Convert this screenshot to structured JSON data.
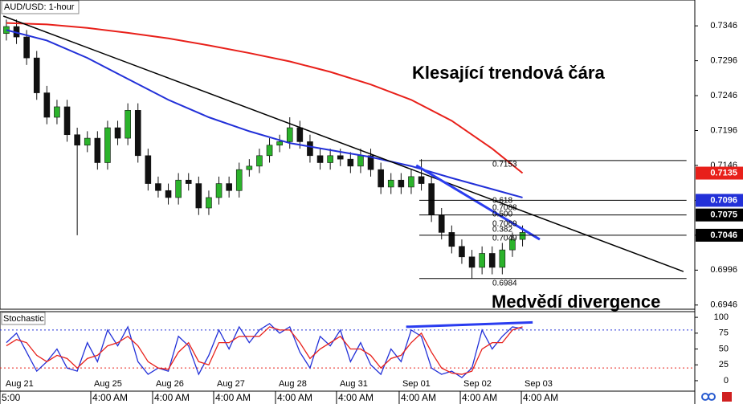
{
  "chart_data": [
    {
      "type": "candlestick",
      "title": "AUD/USD: 1-hour",
      "x": [
        0,
        1,
        2,
        3,
        4,
        5,
        6,
        7,
        8,
        9,
        10,
        11,
        12,
        13,
        14,
        15,
        16,
        17,
        18,
        19,
        20,
        21,
        22,
        23,
        24,
        25,
        26,
        27,
        28,
        29,
        30,
        31,
        32,
        33,
        34,
        35,
        36,
        37,
        38,
        39,
        40,
        41,
        42,
        43,
        44,
        45,
        46,
        47,
        48,
        49,
        50,
        51
      ],
      "open": [
        0.7335,
        0.7345,
        0.733,
        0.73,
        0.725,
        0.7215,
        0.723,
        0.719,
        0.7175,
        0.7185,
        0.715,
        0.72,
        0.7185,
        0.7225,
        0.716,
        0.712,
        0.711,
        0.71,
        0.7125,
        0.712,
        0.7085,
        0.71,
        0.712,
        0.711,
        0.714,
        0.7145,
        0.716,
        0.7175,
        0.718,
        0.72,
        0.718,
        0.716,
        0.715,
        0.716,
        0.7155,
        0.7145,
        0.716,
        0.714,
        0.7115,
        0.7125,
        0.7115,
        0.713,
        0.712,
        0.7075,
        0.705,
        0.703,
        0.7015,
        0.7,
        0.702,
        0.7,
        0.7025,
        0.704
      ],
      "high": [
        0.7355,
        0.7355,
        0.734,
        0.731,
        0.726,
        0.724,
        0.724,
        0.72,
        0.7195,
        0.7195,
        0.721,
        0.721,
        0.7235,
        0.7235,
        0.717,
        0.713,
        0.712,
        0.7135,
        0.7135,
        0.713,
        0.711,
        0.713,
        0.713,
        0.715,
        0.7155,
        0.717,
        0.7185,
        0.719,
        0.7215,
        0.721,
        0.719,
        0.717,
        0.717,
        0.717,
        0.7165,
        0.717,
        0.717,
        0.715,
        0.7135,
        0.7135,
        0.714,
        0.7155,
        0.713,
        0.7085,
        0.706,
        0.704,
        0.7025,
        0.703,
        0.703,
        0.7035,
        0.705,
        0.706
      ],
      "low": [
        0.7325,
        0.732,
        0.729,
        0.724,
        0.7205,
        0.7205,
        0.718,
        0.7046,
        0.7165,
        0.714,
        0.714,
        0.7175,
        0.7175,
        0.715,
        0.711,
        0.71,
        0.709,
        0.709,
        0.711,
        0.7075,
        0.7075,
        0.709,
        0.71,
        0.71,
        0.713,
        0.7135,
        0.715,
        0.7165,
        0.717,
        0.717,
        0.715,
        0.714,
        0.714,
        0.7145,
        0.7135,
        0.7135,
        0.713,
        0.7105,
        0.7105,
        0.7105,
        0.7105,
        0.711,
        0.7065,
        0.704,
        0.702,
        0.7005,
        0.6984,
        0.699,
        0.699,
        0.699,
        0.7015,
        0.703
      ],
      "close": [
        0.7345,
        0.733,
        0.73,
        0.725,
        0.7215,
        0.723,
        0.719,
        0.7175,
        0.7185,
        0.715,
        0.72,
        0.7185,
        0.7225,
        0.716,
        0.712,
        0.711,
        0.71,
        0.7125,
        0.712,
        0.7085,
        0.71,
        0.712,
        0.711,
        0.714,
        0.7145,
        0.716,
        0.7175,
        0.718,
        0.72,
        0.718,
        0.716,
        0.715,
        0.716,
        0.7155,
        0.7145,
        0.716,
        0.714,
        0.7115,
        0.7125,
        0.7115,
        0.713,
        0.712,
        0.7075,
        0.705,
        0.703,
        0.7015,
        0.7,
        0.702,
        0.7,
        0.7025,
        0.704,
        0.705
      ],
      "up_color": "#2bb32b",
      "down_color": "#111111",
      "series": [
        {
          "color": "#2230d8",
          "x": [
            0,
            4,
            8,
            12,
            16,
            20,
            24,
            28,
            32,
            36,
            40,
            44,
            48,
            51
          ],
          "values": [
            0.734,
            0.7325,
            0.73,
            0.727,
            0.724,
            0.7215,
            0.7195,
            0.7178,
            0.7168,
            0.7158,
            0.7145,
            0.7128,
            0.7112,
            0.71
          ]
        },
        {
          "color": "#e8201a",
          "x": [
            0,
            4,
            8,
            12,
            16,
            20,
            24,
            28,
            32,
            36,
            40,
            44,
            48,
            51
          ],
          "values": [
            0.735,
            0.7348,
            0.7343,
            0.7336,
            0.7328,
            0.7318,
            0.7307,
            0.7295,
            0.728,
            0.7262,
            0.724,
            0.721,
            0.717,
            0.7135
          ]
        }
      ],
      "trendlines": [
        {
          "color": "#000000",
          "x": [
            -0.3,
            66.9
          ],
          "y": [
            0.736,
            0.6994
          ]
        },
        {
          "color": "#2a3cf0",
          "x": [
            40.5,
            52.7
          ],
          "y": [
            0.7146,
            0.704
          ]
        }
      ],
      "fib_x": [
        40.8,
        67.2
      ],
      "fib_levels": [
        0.7153,
        0.7096,
        0.7075,
        0.7046,
        0.6984
      ],
      "fib_labels": [
        "0.7153",
        "0.618",
        "0.7088",
        "0.500",
        "0.7069",
        "0.382",
        "0.7049",
        "0.6984"
      ],
      "annotations": [
        "Klesající trendová čára",
        "Medvědí divergence"
      ],
      "xlim": [
        -0.63,
        68.02
      ],
      "ylim": [
        0.694,
        0.7383
      ],
      "yticks": [
        0.7346,
        0.7296,
        0.7246,
        0.7196,
        0.7146,
        0.7096,
        0.7046,
        0.6996,
        0.6946
      ],
      "price_tags": [
        {
          "value": 0.7135,
          "color": "#e8201a"
        },
        {
          "value": 0.7096,
          "color": "#2230d8"
        },
        {
          "value": 0.7075,
          "color": "#000000"
        },
        {
          "value": 0.7046,
          "color": "#000000"
        }
      ],
      "xticks": [
        {
          "value": -0.4,
          "label": "Aug 21"
        },
        {
          "value": 8.34,
          "label": "Aug 25"
        },
        {
          "value": 14.45,
          "label": "Aug 26"
        },
        {
          "value": 20.48,
          "label": "Aug 27"
        },
        {
          "value": 26.59,
          "label": "Aug 28"
        },
        {
          "value": 32.62,
          "label": "Aug 31"
        },
        {
          "value": 38.81,
          "label": "Sep 01"
        },
        {
          "value": 44.85,
          "label": "Sep 02"
        },
        {
          "value": 50.88,
          "label": "Sep 03"
        }
      ],
      "time_labels": [
        {
          "value": -0.63,
          "label": "5:00"
        },
        {
          "value": 8.34,
          "label": "4:00 AM"
        },
        {
          "value": 14.45,
          "label": "4:00 AM"
        },
        {
          "value": 20.48,
          "label": "4:00 AM"
        },
        {
          "value": 26.59,
          "label": "4:00 AM"
        },
        {
          "value": 32.62,
          "label": "4:00 AM"
        },
        {
          "value": 38.81,
          "label": "4:00 AM"
        },
        {
          "value": 44.85,
          "label": "4:00 AM"
        },
        {
          "value": 50.88,
          "label": "4:00 AM"
        }
      ]
    },
    {
      "type": "line",
      "title": "Stochastic",
      "x": [
        0,
        1,
        2,
        3,
        4,
        5,
        6,
        7,
        8,
        9,
        10,
        11,
        12,
        13,
        14,
        15,
        16,
        17,
        18,
        19,
        20,
        21,
        22,
        23,
        24,
        25,
        26,
        27,
        28,
        29,
        30,
        31,
        32,
        33,
        34,
        35,
        36,
        37,
        38,
        39,
        40,
        41,
        42,
        43,
        44,
        45,
        46,
        47,
        48,
        49,
        50,
        51
      ],
      "series": [
        {
          "color": "#2230d8",
          "values": [
            60,
            75,
            45,
            15,
            30,
            50,
            20,
            15,
            60,
            30,
            80,
            55,
            85,
            30,
            10,
            20,
            15,
            70,
            55,
            10,
            40,
            80,
            50,
            85,
            60,
            80,
            90,
            75,
            85,
            45,
            20,
            70,
            55,
            80,
            30,
            60,
            25,
            10,
            50,
            30,
            80,
            70,
            20,
            10,
            15,
            5,
            20,
            80,
            50,
            70,
            85,
            82
          ]
        },
        {
          "color": "#e8201a",
          "values": [
            55,
            65,
            60,
            40,
            30,
            40,
            35,
            20,
            35,
            40,
            55,
            60,
            70,
            55,
            30,
            20,
            18,
            45,
            60,
            30,
            25,
            60,
            60,
            70,
            70,
            70,
            85,
            80,
            80,
            60,
            35,
            50,
            60,
            70,
            50,
            50,
            40,
            20,
            35,
            40,
            60,
            75,
            45,
            20,
            12,
            10,
            15,
            50,
            60,
            60,
            80,
            85
          ]
        }
      ],
      "levels": [
        {
          "value": 80,
          "color": "#2230d8"
        },
        {
          "value": 20,
          "color": "#e8201a"
        }
      ],
      "divergence": {
        "color": "#2a3cf0",
        "x": [
          39.5,
          52
        ],
        "y": [
          85,
          92
        ]
      },
      "xlim": [
        -0.63,
        68.02
      ],
      "ylim": [
        -14,
        109
      ],
      "yticks": [
        0,
        25,
        50,
        75,
        100
      ]
    }
  ]
}
